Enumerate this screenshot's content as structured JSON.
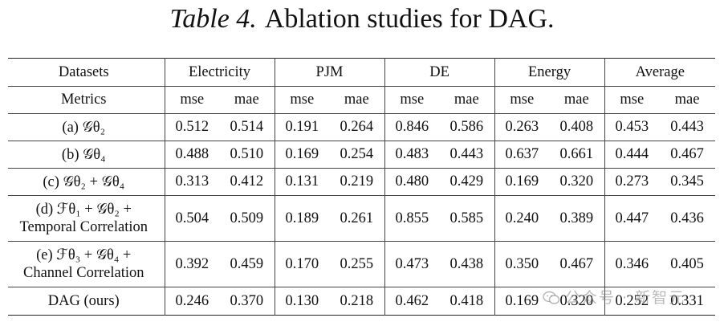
{
  "caption": {
    "label": "Table 4.",
    "text": "Ablation studies for DAG."
  },
  "header": {
    "datasets_label": "Datasets",
    "groups": [
      "Electricity",
      "PJM",
      "DE",
      "Energy",
      "Average"
    ],
    "metrics_label": "Metrics",
    "metrics": [
      "mse",
      "mae"
    ]
  },
  "rows": [
    {
      "label": "(a) 𝒢θ₂",
      "values": [
        "0.512",
        "0.514",
        "0.191",
        "0.264",
        "0.846",
        "0.586",
        "0.263",
        "0.408",
        "0.453",
        "0.443"
      ]
    },
    {
      "label": "(b) 𝒢θ₄",
      "values": [
        "0.488",
        "0.510",
        "0.169",
        "0.254",
        "0.483",
        "0.443",
        "0.637",
        "0.661",
        "0.444",
        "0.467"
      ]
    },
    {
      "label": "(c) 𝒢θ₂ + 𝒢θ₄",
      "values": [
        "0.313",
        "0.412",
        "0.131",
        "0.219",
        "0.480",
        "0.429",
        "0.169",
        "0.320",
        "0.273",
        "0.345"
      ]
    },
    {
      "label_line1": "(d) ℱθ₁ + 𝒢θ₂ +",
      "label_line2": "Temporal Correlation",
      "values": [
        "0.504",
        "0.509",
        "0.189",
        "0.261",
        "0.855",
        "0.585",
        "0.240",
        "0.389",
        "0.447",
        "0.436"
      ]
    },
    {
      "label_line1": "(e) ℱθ₃ + 𝒢θ₄ +",
      "label_line2": "Channel Correlation",
      "values": [
        "0.392",
        "0.459",
        "0.170",
        "0.255",
        "0.473",
        "0.438",
        "0.350",
        "0.467",
        "0.346",
        "0.405"
      ]
    },
    {
      "label": "DAG (ours)",
      "values": [
        "0.246",
        "0.370",
        "0.130",
        "0.218",
        "0.462",
        "0.418",
        "0.169",
        "0.320",
        "0.252",
        "0.331"
      ]
    }
  ],
  "watermark": {
    "text": "公众号 · 新智元",
    "icon": "wechat-icon"
  }
}
